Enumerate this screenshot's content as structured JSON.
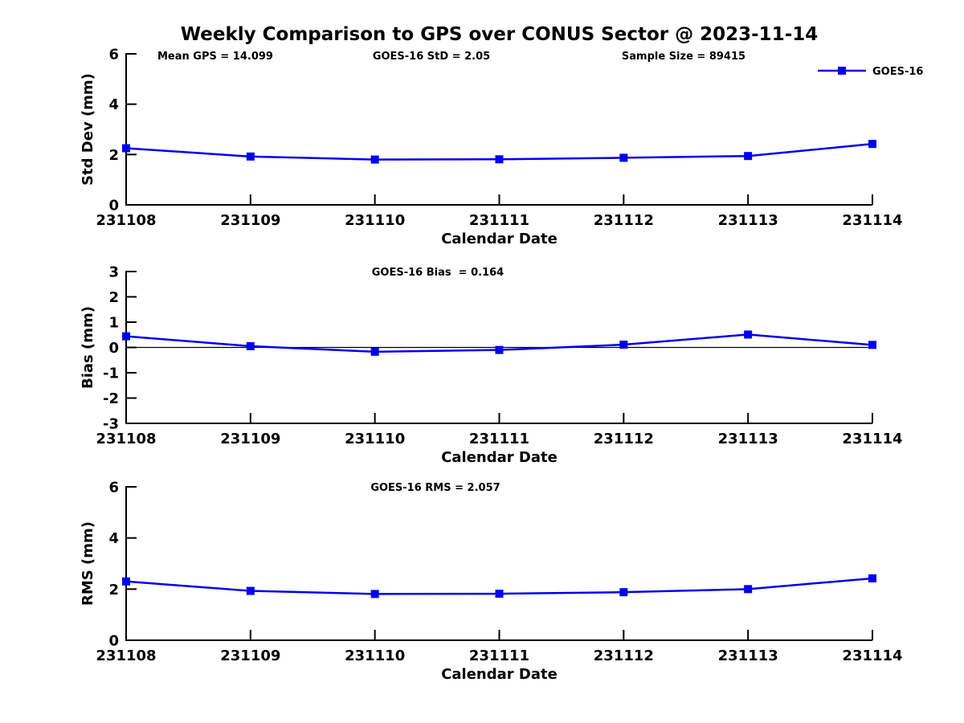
{
  "title": "Weekly Comparison to GPS over CONUS Sector @ 2023-11-14",
  "legend": {
    "label": "GOES-16"
  },
  "colors": {
    "series": "#0000EE",
    "axis": "#000000",
    "text": "#000000",
    "background": "#FFFFFF"
  },
  "chart_data": [
    {
      "type": "line",
      "categories": [
        "231108",
        "231109",
        "231110",
        "231111",
        "231112",
        "231113",
        "231114"
      ],
      "series": [
        {
          "name": "GOES-16",
          "values": [
            2.25,
            1.92,
            1.8,
            1.81,
            1.87,
            1.94,
            2.42
          ]
        }
      ],
      "annotations": [
        "Mean GPS = 14.099",
        "GOES-16 StD = 2.05",
        "Sample Size = 89415"
      ],
      "xlabel": "Calendar Date",
      "ylabel": "Std Dev (mm)",
      "ylim": [
        0,
        6
      ],
      "yticks": [
        0,
        2,
        4,
        6
      ],
      "grid": false,
      "zero_line": false,
      "legend_position": "top-right",
      "marker": "square"
    },
    {
      "type": "line",
      "categories": [
        "231108",
        "231109",
        "231110",
        "231111",
        "231112",
        "231113",
        "231114"
      ],
      "series": [
        {
          "name": "GOES-16",
          "values": [
            0.44,
            0.05,
            -0.17,
            -0.1,
            0.11,
            0.51,
            0.1
          ]
        }
      ],
      "annotations": [
        "GOES-16 Bias  = 0.164"
      ],
      "xlabel": "Calendar Date",
      "ylabel": "Bias (mm)",
      "ylim": [
        -3,
        3
      ],
      "yticks": [
        -3,
        -2,
        -1,
        0,
        1,
        2,
        3
      ],
      "grid": false,
      "zero_line": true,
      "legend_position": "none",
      "marker": "square"
    },
    {
      "type": "line",
      "categories": [
        "231108",
        "231109",
        "231110",
        "231111",
        "231112",
        "231113",
        "231114"
      ],
      "series": [
        {
          "name": "GOES-16",
          "values": [
            2.3,
            1.93,
            1.81,
            1.82,
            1.88,
            2.0,
            2.42
          ]
        }
      ],
      "annotations": [
        "GOES-16 RMS = 2.057"
      ],
      "xlabel": "Calendar Date",
      "ylabel": "RMS (mm)",
      "ylim": [
        0,
        6
      ],
      "yticks": [
        0,
        2,
        4,
        6
      ],
      "grid": false,
      "zero_line": false,
      "legend_position": "none",
      "marker": "square"
    }
  ]
}
